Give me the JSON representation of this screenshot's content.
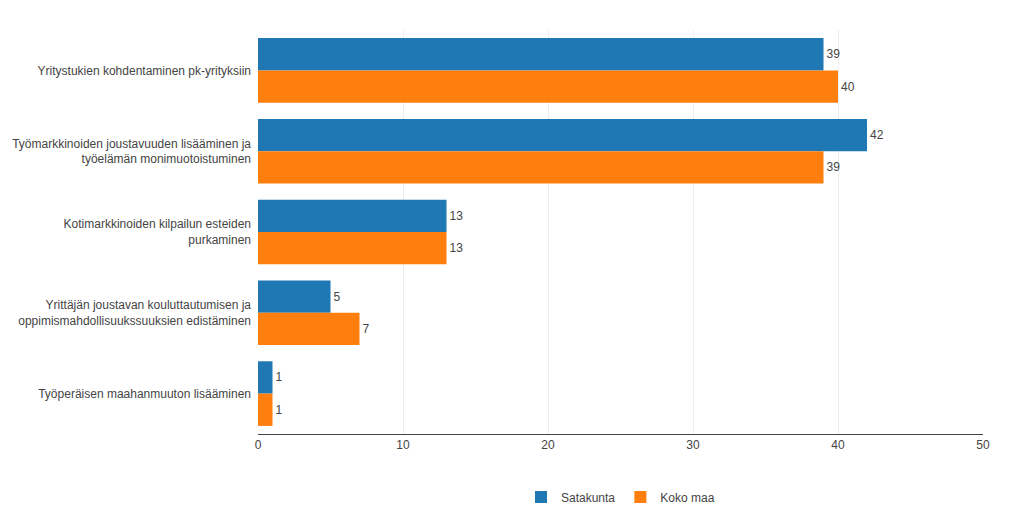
{
  "chart_data": {
    "type": "bar",
    "orientation": "horizontal",
    "categories": [
      "Yritystukien kohdentaminen pk-yrityksiin",
      "Työmarkkinoiden joustavuuden lisääminen ja\ntyöelämän monimuotoistuminen",
      "Kotimarkkinoiden kilpailun esteiden\npurkaminen",
      "Yrittäjän joustavan kouluttautumisen ja\noppimismahdollisuukssuuksien edistäminen",
      "Työperäisen maahanmuuton lisääminen"
    ],
    "series": [
      {
        "name": "Satakunta",
        "values": [
          39,
          42,
          13,
          5,
          1
        ]
      },
      {
        "name": "Koko maa",
        "values": [
          40,
          39,
          13,
          7,
          1
        ]
      }
    ],
    "xlim": [
      0,
      50
    ],
    "xticks": [
      0,
      10,
      20,
      30,
      40,
      50
    ],
    "grid": true,
    "data_labels": true,
    "legend": "bottom"
  }
}
